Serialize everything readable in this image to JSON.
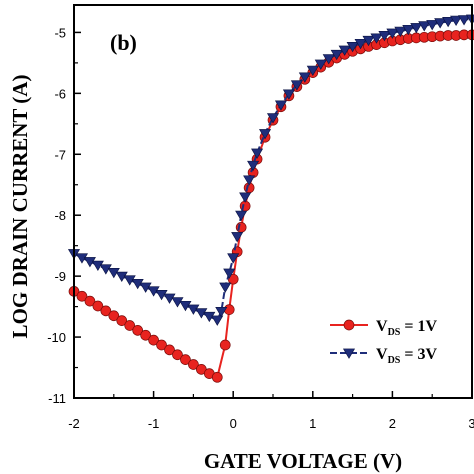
{
  "chart_data": {
    "type": "line",
    "panel_label": "(b)",
    "xlabel": "GATE VOLTAGE (V)",
    "ylabel": "LOG DRAIN CURRENT (A)",
    "xlim": [
      -2,
      3
    ],
    "ylim": [
      -11,
      -4.55
    ],
    "x_ticks": [
      "-2",
      "-1",
      "0",
      "1",
      "2",
      "3"
    ],
    "y_ticks": [
      "-11",
      "-10",
      "-9",
      "-8",
      "-7",
      "-6",
      "-5"
    ],
    "legend_position": "lower-right",
    "series": [
      {
        "legend_main": "V",
        "legend_sub": "DS",
        "legend_tail": " = 1V",
        "color": "#e8231f",
        "marker": "circle",
        "line_style": "solid",
        "x": [
          -2.0,
          -1.9,
          -1.8,
          -1.7,
          -1.6,
          -1.5,
          -1.4,
          -1.3,
          -1.2,
          -1.1,
          -1.0,
          -0.9,
          -0.8,
          -0.7,
          -0.6,
          -0.5,
          -0.4,
          -0.3,
          -0.2,
          -0.1,
          -0.05,
          0.0,
          0.05,
          0.1,
          0.15,
          0.2,
          0.25,
          0.3,
          0.4,
          0.5,
          0.6,
          0.7,
          0.8,
          0.9,
          1.0,
          1.1,
          1.2,
          1.3,
          1.4,
          1.5,
          1.6,
          1.7,
          1.8,
          1.9,
          2.0,
          2.1,
          2.2,
          2.3,
          2.4,
          2.5,
          2.6,
          2.7,
          2.8,
          2.9,
          3.0
        ],
        "y": [
          -9.25,
          -9.33,
          -9.41,
          -9.49,
          -9.57,
          -9.65,
          -9.73,
          -9.81,
          -9.89,
          -9.97,
          -10.05,
          -10.13,
          -10.21,
          -10.29,
          -10.37,
          -10.45,
          -10.53,
          -10.6,
          -10.66,
          -10.13,
          -9.55,
          -9.05,
          -8.6,
          -8.2,
          -7.85,
          -7.55,
          -7.3,
          -7.08,
          -6.72,
          -6.44,
          -6.22,
          -6.04,
          -5.89,
          -5.77,
          -5.66,
          -5.57,
          -5.49,
          -5.42,
          -5.36,
          -5.31,
          -5.27,
          -5.23,
          -5.2,
          -5.17,
          -5.14,
          -5.12,
          -5.1,
          -5.09,
          -5.08,
          -5.07,
          -5.06,
          -5.05,
          -5.05,
          -5.04,
          -5.04
        ]
      },
      {
        "legend_main": "V",
        "legend_sub": "DS",
        "legend_tail": " = 3V",
        "color": "#1f2d7a",
        "marker": "triangle-down",
        "line_style": "dashed",
        "x": [
          -2.0,
          -1.9,
          -1.8,
          -1.7,
          -1.6,
          -1.5,
          -1.4,
          -1.3,
          -1.2,
          -1.1,
          -1.0,
          -0.9,
          -0.8,
          -0.7,
          -0.6,
          -0.5,
          -0.4,
          -0.3,
          -0.2,
          -0.15,
          -0.1,
          -0.05,
          0.0,
          0.05,
          0.1,
          0.15,
          0.2,
          0.25,
          0.3,
          0.4,
          0.5,
          0.6,
          0.7,
          0.8,
          0.9,
          1.0,
          1.1,
          1.2,
          1.3,
          1.4,
          1.5,
          1.6,
          1.7,
          1.8,
          1.9,
          2.0,
          2.1,
          2.2,
          2.3,
          2.4,
          2.5,
          2.6,
          2.7,
          2.8,
          2.9,
          3.0
        ],
        "y": [
          -8.63,
          -8.7,
          -8.76,
          -8.82,
          -8.88,
          -8.94,
          -9.0,
          -9.06,
          -9.12,
          -9.18,
          -9.24,
          -9.3,
          -9.36,
          -9.42,
          -9.48,
          -9.54,
          -9.6,
          -9.66,
          -9.72,
          -9.58,
          -9.18,
          -8.95,
          -8.7,
          -8.35,
          -8.0,
          -7.7,
          -7.42,
          -7.18,
          -6.98,
          -6.66,
          -6.4,
          -6.19,
          -6.01,
          -5.86,
          -5.73,
          -5.62,
          -5.52,
          -5.43,
          -5.36,
          -5.29,
          -5.23,
          -5.18,
          -5.13,
          -5.09,
          -5.05,
          -5.01,
          -4.98,
          -4.95,
          -4.92,
          -4.89,
          -4.87,
          -4.84,
          -4.82,
          -4.8,
          -4.79,
          -4.78
        ]
      }
    ]
  }
}
